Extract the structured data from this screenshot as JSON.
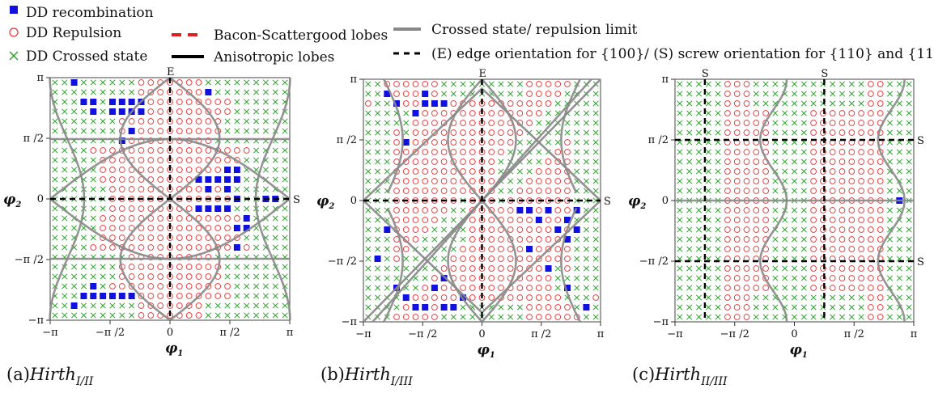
{
  "legend": {
    "recombination": "DD recombination",
    "repulsion": "DD Repulsion",
    "crossed": "DD Crossed state",
    "bacon": "Bacon-Scattergood lobes",
    "anisotropic": "Anisotropic lobes",
    "crossed_limit": "Crossed state/ repulsion limit",
    "orientation": "(E) edge orientation for {100}/ (S) screw orientation for {110} and {111}"
  },
  "colors": {
    "recombination": "#1010e0",
    "repulsion": "#e83030",
    "crossed": "#22a022",
    "bacon": "#e02020",
    "anisotropic": "#000000",
    "limit": "#888888"
  },
  "chart_data": [
    {
      "type": "scatter",
      "panel_label": "(a)",
      "caption_main": "Hirth",
      "caption_sub": "I/II",
      "xlabel": "φ",
      "xlabel_sub": "1",
      "ylabel": "φ",
      "ylabel_sub": "2",
      "xticks": [
        "−π",
        "−π /2",
        "0",
        "π /2",
        "π"
      ],
      "yticks": [
        "π",
        "π /2",
        "0",
        "−π /2",
        "−π"
      ],
      "xlim": [
        -3.1416,
        3.1416
      ],
      "ylim": [
        -3.1416,
        3.1416
      ],
      "grid_n": 25,
      "edge_marks": [
        {
          "text": "E",
          "side": "top",
          "at": 0
        },
        {
          "text": "S",
          "side": "right",
          "at": 0
        }
      ],
      "recombination_cells": [
        [
          2,
          24
        ],
        [
          3,
          22
        ],
        [
          4,
          22
        ],
        [
          4,
          21
        ],
        [
          6,
          22
        ],
        [
          7,
          22
        ],
        [
          8,
          22
        ],
        [
          9,
          22
        ],
        [
          6,
          21
        ],
        [
          7,
          21
        ],
        [
          8,
          21
        ],
        [
          9,
          21
        ],
        [
          8,
          19
        ],
        [
          7,
          18
        ],
        [
          3,
          2
        ],
        [
          2,
          1
        ],
        [
          4,
          3
        ],
        [
          4,
          2
        ],
        [
          5,
          2
        ],
        [
          6,
          2
        ],
        [
          7,
          2
        ],
        [
          8,
          2
        ],
        [
          18,
          15
        ],
        [
          19,
          15
        ],
        [
          18,
          14
        ],
        [
          15,
          14
        ],
        [
          16,
          14
        ],
        [
          17,
          14
        ],
        [
          19,
          14
        ],
        [
          16,
          13
        ],
        [
          18,
          13
        ],
        [
          22,
          12
        ],
        [
          23,
          12
        ],
        [
          19,
          12
        ],
        [
          15,
          11
        ],
        [
          16,
          11
        ],
        [
          17,
          11
        ],
        [
          18,
          11
        ],
        [
          20,
          10
        ],
        [
          19,
          9
        ],
        [
          20,
          9
        ],
        [
          19,
          7
        ],
        [
          16,
          23
        ]
      ]
    },
    {
      "type": "scatter",
      "panel_label": "(b)",
      "caption_main": "Hirth",
      "caption_sub": "I/III",
      "xlabel": "φ",
      "xlabel_sub": "1",
      "ylabel": "φ",
      "ylabel_sub": "2",
      "xticks": [
        "−π",
        "−π /2",
        "0",
        "π /2",
        "π"
      ],
      "yticks": [
        "π",
        "π /2",
        "0",
        "−π /2",
        "−π"
      ],
      "xlim": [
        -3.1416,
        3.1416
      ],
      "ylim": [
        -3.1416,
        3.1416
      ],
      "grid_n": 25,
      "edge_marks": [
        {
          "text": "E",
          "side": "top",
          "at": 0
        },
        {
          "text": "S",
          "side": "right",
          "at": 0
        }
      ],
      "recombination_cells": [
        [
          2,
          23
        ],
        [
          3,
          22
        ],
        [
          6,
          23
        ],
        [
          6,
          22
        ],
        [
          7,
          22
        ],
        [
          8,
          22
        ],
        [
          5,
          21
        ],
        [
          4,
          18
        ],
        [
          2,
          9
        ],
        [
          1,
          6
        ],
        [
          3,
          3
        ],
        [
          4,
          2
        ],
        [
          5,
          1
        ],
        [
          6,
          1
        ],
        [
          7,
          3
        ],
        [
          8,
          1
        ],
        [
          9,
          1
        ],
        [
          8,
          4
        ],
        [
          10,
          2
        ],
        [
          16,
          11
        ],
        [
          17,
          11
        ],
        [
          22,
          11
        ],
        [
          21,
          10
        ],
        [
          20,
          9
        ],
        [
          22,
          9
        ],
        [
          21,
          8
        ],
        [
          17,
          7
        ],
        [
          19,
          5
        ],
        [
          21,
          3
        ],
        [
          23,
          1
        ],
        [
          18,
          10
        ],
        [
          19,
          11
        ]
      ]
    },
    {
      "type": "scatter",
      "panel_label": "(c)",
      "caption_main": "Hirth",
      "caption_sub": "II/III",
      "xlabel": "φ",
      "xlabel_sub": "1",
      "ylabel": "φ",
      "ylabel_sub": "2",
      "xticks": [
        "−π",
        "−π /2",
        "0",
        "π /2",
        "π"
      ],
      "yticks": [
        "π",
        "π /2",
        "0",
        "−π /2",
        "−π"
      ],
      "xlim": [
        -3.1416,
        3.1416
      ],
      "ylim": [
        -3.1416,
        3.1416
      ],
      "grid_n": 25,
      "edge_marks": [
        {
          "text": "S",
          "side": "top",
          "at": -2.356
        },
        {
          "text": "S",
          "side": "top",
          "at": 0.785
        },
        {
          "text": "S",
          "side": "right",
          "at": 1.571
        },
        {
          "text": "S",
          "side": "right",
          "at": -1.571
        }
      ],
      "recombination_cells": [
        [
          23,
          12
        ]
      ]
    }
  ]
}
